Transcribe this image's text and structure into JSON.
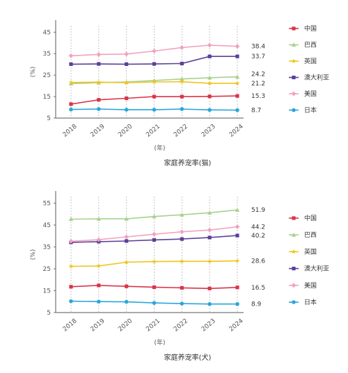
{
  "chart_data": [
    {
      "type": "line",
      "title": "家庭养宠率(猫)",
      "xlabel": "(年)",
      "ylabel": "(%)",
      "categories": [
        "2018",
        "2019",
        "2020",
        "2021",
        "2022",
        "2023",
        "2024"
      ],
      "ylim": [
        5,
        48
      ],
      "yticks": [
        5,
        15,
        25,
        35,
        45
      ],
      "grid": "vertical-dashed",
      "legend": "right",
      "series": [
        {
          "name": "中国",
          "color": "#d9344a",
          "marker": "square",
          "values": [
            11.5,
            13.5,
            14.2,
            15.0,
            15.0,
            15.1,
            15.3
          ],
          "end_label": "15.3"
        },
        {
          "name": "巴西",
          "color": "#a8d18d",
          "marker": "triangle",
          "values": [
            21.0,
            21.5,
            21.8,
            22.5,
            23.2,
            23.8,
            24.2
          ],
          "end_label": "24.2"
        },
        {
          "name": "英国",
          "color": "#f0c419",
          "marker": "star",
          "values": [
            21.6,
            21.7,
            21.5,
            21.8,
            21.9,
            21.2,
            21.2
          ],
          "end_label": "21.2"
        },
        {
          "name": "澳大利亚",
          "color": "#5b3f9a",
          "marker": "square",
          "values": [
            30.1,
            30.2,
            30.1,
            30.2,
            30.4,
            33.7,
            33.7
          ],
          "end_label": "33.7"
        },
        {
          "name": "美国",
          "color": "#f2a2bd",
          "marker": "diamond",
          "values": [
            34.0,
            34.6,
            34.8,
            36.2,
            37.8,
            38.9,
            38.4
          ],
          "end_label": "38.4"
        },
        {
          "name": "日本",
          "color": "#2aa6dc",
          "marker": "circle",
          "values": [
            9.0,
            9.2,
            8.9,
            8.9,
            9.2,
            8.8,
            8.7
          ],
          "end_label": "8.7"
        }
      ]
    },
    {
      "type": "line",
      "title": "家庭养宠率(犬)",
      "xlabel": "(年)",
      "ylabel": "(%)",
      "categories": [
        "2018",
        "2019",
        "2020",
        "2021",
        "2022",
        "2023",
        "2024"
      ],
      "ylim": [
        5,
        58
      ],
      "yticks": [
        5,
        15,
        25,
        35,
        45,
        55
      ],
      "grid": "vertical-dashed",
      "legend": "right",
      "series": [
        {
          "name": "中国",
          "color": "#d9344a",
          "marker": "square",
          "values": [
            16.8,
            17.4,
            17.0,
            16.6,
            16.3,
            16.0,
            16.5
          ],
          "end_label": "16.5"
        },
        {
          "name": "巴西",
          "color": "#a8d18d",
          "marker": "triangle",
          "values": [
            47.7,
            47.8,
            47.8,
            48.9,
            49.7,
            50.6,
            51.9
          ],
          "end_label": "51.9"
        },
        {
          "name": "英国",
          "color": "#f0c419",
          "marker": "star",
          "values": [
            26.1,
            26.3,
            28.0,
            28.3,
            28.4,
            28.4,
            28.6
          ],
          "end_label": "28.6"
        },
        {
          "name": "澳大利亚",
          "color": "#5b3f9a",
          "marker": "square",
          "values": [
            37.1,
            37.4,
            37.7,
            38.2,
            38.6,
            39.3,
            40.2
          ],
          "end_label": "40.2"
        },
        {
          "name": "美国",
          "color": "#f2a2bd",
          "marker": "diamond",
          "values": [
            37.6,
            38.3,
            39.6,
            40.8,
            41.9,
            42.7,
            44.2
          ],
          "end_label": "44.2"
        },
        {
          "name": "日本",
          "color": "#2aa6dc",
          "marker": "circle",
          "values": [
            10.2,
            10.0,
            9.9,
            9.4,
            9.1,
            8.9,
            8.9
          ],
          "end_label": "8.9"
        }
      ]
    }
  ]
}
